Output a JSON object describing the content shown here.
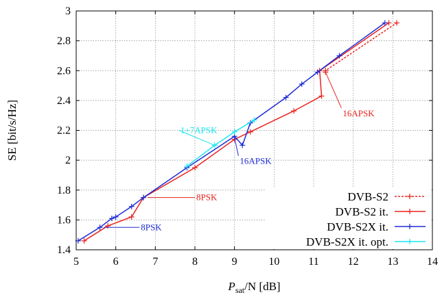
{
  "chart_data": {
    "type": "line",
    "xlabel_main": "P",
    "xlabel_sub": "sat",
    "xlabel_rest": "/N [dB]",
    "ylabel": "SE [bit/s/Hz]",
    "xlim": [
      5,
      14
    ],
    "ylim": [
      1.4,
      3
    ],
    "xticks": [
      5,
      6,
      7,
      8,
      9,
      10,
      11,
      12,
      13,
      14
    ],
    "yticks": [
      1.4,
      1.6,
      1.8,
      2,
      2.2,
      2.4,
      2.6,
      2.8,
      3
    ],
    "ytick_labels": [
      "1.4",
      "1.6",
      "1.8",
      "2",
      "2.2",
      "2.4",
      "2.6",
      "2.8",
      "3"
    ],
    "grid": true,
    "legend_position": "bottom-right",
    "series": [
      {
        "name": "DVB-S2",
        "color": "#e8231f",
        "dashed": true,
        "points": [
          [
            11.3,
            2.59
          ],
          [
            11.3,
            2.6
          ],
          [
            13.1,
            2.92
          ]
        ]
      },
      {
        "name": "DVB-S2 it.",
        "color": "#e8231f",
        "dashed": false,
        "points": [
          [
            5.2,
            1.46
          ],
          [
            5.8,
            1.56
          ],
          [
            6.4,
            1.62
          ],
          [
            6.7,
            1.75
          ],
          [
            8.0,
            1.95
          ],
          [
            9.0,
            2.14
          ],
          [
            9.4,
            2.19
          ],
          [
            10.5,
            2.33
          ],
          [
            11.2,
            2.43
          ],
          [
            11.15,
            2.6
          ],
          [
            12.9,
            2.92
          ]
        ]
      },
      {
        "name": "DVB-S2X it.",
        "color": "#1e2bd6",
        "dashed": false,
        "points": [
          [
            5.05,
            1.46
          ],
          [
            5.6,
            1.55
          ],
          [
            5.9,
            1.61
          ],
          [
            6.0,
            1.62
          ],
          [
            6.4,
            1.69
          ],
          [
            6.7,
            1.75
          ],
          [
            7.8,
            1.95
          ],
          [
            9.0,
            2.16
          ],
          [
            9.2,
            2.1
          ],
          [
            9.4,
            2.25
          ],
          [
            10.3,
            2.42
          ],
          [
            10.7,
            2.51
          ],
          [
            11.1,
            2.59
          ],
          [
            11.65,
            2.7
          ],
          [
            12.8,
            2.92
          ]
        ]
      },
      {
        "name": "DVB-S2X it. opt.",
        "color": "#19e6ef",
        "dashed": false,
        "points": [
          [
            7.8,
            1.96
          ],
          [
            8.5,
            2.1
          ],
          [
            9.0,
            2.19
          ],
          [
            9.5,
            2.27
          ]
        ]
      }
    ],
    "annotations": [
      {
        "text": "16APSK",
        "color": "#e8231f",
        "point": [
          11.3,
          2.59
        ],
        "label_at": [
          11.7,
          2.35
        ]
      },
      {
        "text": "8PSK",
        "color": "#e8231f",
        "point": [
          6.8,
          1.75
        ],
        "label_at": [
          8.0,
          1.75
        ]
      },
      {
        "text": "1+7APSK",
        "color": "#19e6ef",
        "point": [
          8.5,
          2.1
        ],
        "label_at": [
          7.6,
          2.2
        ]
      },
      {
        "text": "16APSK",
        "color": "#1e2bd6",
        "point": [
          9.0,
          2.15
        ],
        "label_at": [
          9.1,
          2.03
        ]
      },
      {
        "text": "8PSK",
        "color": "#1e2bd6",
        "point": [
          5.7,
          1.55
        ],
        "label_at": [
          6.6,
          1.55
        ]
      }
    ]
  }
}
